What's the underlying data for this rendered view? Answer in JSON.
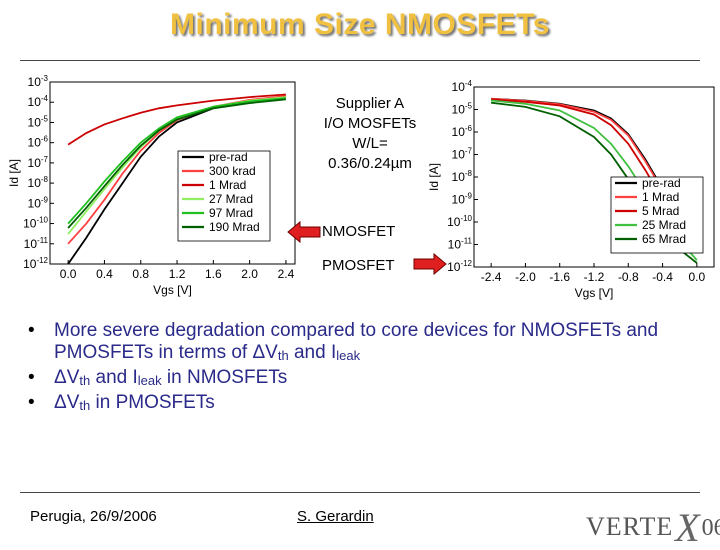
{
  "slide": {
    "title": "Minimum Size NMOSFETs",
    "device_info": {
      "line1": "Supplier A",
      "line2": "I/O MOSFETs",
      "line3": "W/L=",
      "line4": "0.36/0.24µm"
    },
    "nmosfet_label": "NMOSFET",
    "pmosfet_label": "PMOSFET",
    "bullets": [
      {
        "pre": "More severe degradation compared to core devices for NMOSFETs and PMOSFETs in terms of ΔV",
        "sub1": "th",
        "mid": " and I",
        "sub2": "leak",
        "post": ""
      },
      {
        "pre": "ΔV",
        "sub1": "th",
        "mid": " and I",
        "sub2": "leak",
        "post": " in NMOSFETs"
      },
      {
        "pre": "ΔV",
        "sub1": "th",
        "mid": "",
        "sub2": "",
        "post": " in PMOSFETs"
      }
    ],
    "footer": {
      "location_date": "Perugia, 26/9/2006",
      "author": "S. Gerardin"
    },
    "logo": {
      "text1": "VERTE",
      "text2": "X",
      "text3": "06"
    },
    "colors": {
      "title": "#f0c040",
      "bullet_text": "#2a2a8a",
      "arrow": "#e02020"
    }
  },
  "chart_data": [
    {
      "type": "line",
      "name": "NMOSFET",
      "xlabel": "Vgs [V]",
      "ylabel": "Id [A]",
      "yscale": "log",
      "xlim": [
        -0.2,
        2.5
      ],
      "ylim": [
        1e-12,
        0.001
      ],
      "xticks": [
        "0.0",
        "0.4",
        "0.8",
        "1.2",
        "1.6",
        "2.0",
        "2.4"
      ],
      "yticks": [
        "10-3",
        "10-4",
        "10-5",
        "10-6",
        "10-7",
        "10-8",
        "10-9",
        "10-10",
        "10-11",
        "10-12"
      ],
      "legend_position": "right",
      "series": [
        {
          "name": "pre-rad",
          "color": "#000000",
          "x": [
            0,
            0.2,
            0.4,
            0.6,
            0.8,
            1.0,
            1.2,
            1.6,
            2.0,
            2.4
          ],
          "y": [
            1e-12,
            2e-11,
            5e-10,
            1e-08,
            2e-07,
            2e-06,
            1e-05,
            5e-05,
            0.00011,
            0.00018
          ]
        },
        {
          "name": "300 krad",
          "color": "#ff4040",
          "x": [
            0,
            0.2,
            0.4,
            0.6,
            0.8,
            1.0,
            1.2,
            1.6,
            2.0,
            2.4
          ],
          "y": [
            1e-11,
            1e-10,
            1.5e-09,
            3e-08,
            4e-07,
            3e-06,
            1.3e-05,
            6e-05,
            0.00013,
            0.0002
          ]
        },
        {
          "name": "1 Mrad",
          "color": "#cc0000",
          "x": [
            0,
            0.2,
            0.4,
            0.6,
            0.8,
            1.0,
            1.2,
            1.6,
            2.0,
            2.4
          ],
          "y": [
            8e-07,
            3e-06,
            8e-06,
            1.6e-05,
            3e-05,
            5e-05,
            7e-05,
            0.00012,
            0.00018,
            0.00024
          ]
        },
        {
          "name": "27 Mrad",
          "color": "#90ee60",
          "x": [
            0,
            0.2,
            0.4,
            0.6,
            0.8,
            1.0,
            1.2,
            1.6,
            2.0,
            2.4
          ],
          "y": [
            3e-11,
            4e-10,
            5e-09,
            6e-08,
            6e-07,
            4e-06,
            1.5e-05,
            6e-05,
            0.00012,
            0.00018
          ]
        },
        {
          "name": "97 Mrad",
          "color": "#20c020",
          "x": [
            0,
            0.2,
            0.4,
            0.6,
            0.8,
            1.0,
            1.2,
            1.6,
            2.0,
            2.4
          ],
          "y": [
            1e-10,
            1e-09,
            1.2e-08,
            1.2e-07,
            1e-06,
            5e-06,
            1.8e-05,
            6e-05,
            0.00011,
            0.00016
          ]
        },
        {
          "name": "190 Mrad",
          "color": "#006000",
          "x": [
            0,
            0.2,
            0.4,
            0.6,
            0.8,
            1.0,
            1.2,
            1.6,
            2.0,
            2.4
          ],
          "y": [
            6e-11,
            6e-10,
            7e-09,
            8e-08,
            7e-07,
            4e-06,
            1.4e-05,
            5e-05,
            9e-05,
            0.00014
          ]
        }
      ]
    },
    {
      "type": "line",
      "name": "PMOSFET",
      "xlabel": "Vgs [V]",
      "ylabel": "Id [A]",
      "yscale": "log",
      "xlim": [
        -2.6,
        0.2
      ],
      "ylim": [
        1e-12,
        0.0001
      ],
      "xticks": [
        "-2.4",
        "-2.0",
        "-1.6",
        "-1.2",
        "-0.8",
        "-0.4",
        "0.0"
      ],
      "yticks": [
        "10-4",
        "10-5",
        "10-6",
        "10-7",
        "10-8",
        "10-9",
        "10-10",
        "10-11",
        "10-12"
      ],
      "legend_position": "right",
      "series": [
        {
          "name": "pre-rad",
          "color": "#000000",
          "x": [
            -2.4,
            -2.0,
            -1.6,
            -1.2,
            -1.0,
            -0.8,
            -0.6,
            -0.4,
            -0.2,
            0.0
          ],
          "y": [
            3e-05,
            2.5e-05,
            1.8e-05,
            9e-06,
            4e-06,
            8e-07,
            6e-08,
            3e-09,
            1e-10,
            1e-11
          ]
        },
        {
          "name": "1 Mrad",
          "color": "#ff4040",
          "x": [
            -2.4,
            -2.0,
            -1.6,
            -1.2,
            -1.0,
            -0.8,
            -0.6,
            -0.4,
            -0.2,
            0.0
          ],
          "y": [
            3e-05,
            2.4e-05,
            1.7e-05,
            8e-06,
            3.5e-06,
            7e-07,
            5e-08,
            2.5e-09,
            1e-10,
            1e-11
          ]
        },
        {
          "name": "5 Mrad",
          "color": "#cc0000",
          "x": [
            -2.4,
            -2.0,
            -1.6,
            -1.2,
            -1.0,
            -0.8,
            -0.6,
            -0.4,
            -0.2,
            0.0
          ],
          "y": [
            2.8e-05,
            2.2e-05,
            1.5e-05,
            6e-06,
            2e-06,
            3e-07,
            2e-08,
            1e-09,
            6e-11,
            6e-12
          ]
        },
        {
          "name": "25 Mrad",
          "color": "#40c040",
          "x": [
            -2.4,
            -2.0,
            -1.6,
            -1.2,
            -1.0,
            -0.8,
            -0.6,
            -0.4,
            -0.2,
            0.0
          ],
          "y": [
            2.5e-05,
            1.8e-05,
            9e-06,
            1.5e-06,
            3e-07,
            3e-08,
            2e-09,
            1.5e-10,
            1.5e-11,
            2e-12
          ]
        },
        {
          "name": "65 Mrad",
          "color": "#006000",
          "x": [
            -2.4,
            -2.0,
            -1.6,
            -1.2,
            -1.0,
            -0.8,
            -0.6,
            -0.4,
            -0.2,
            0.0
          ],
          "y": [
            2e-05,
            1.3e-05,
            5e-06,
            6e-07,
            1e-07,
            8e-09,
            6e-10,
            5e-11,
            6e-12,
            1.5e-12
          ]
        }
      ]
    }
  ]
}
